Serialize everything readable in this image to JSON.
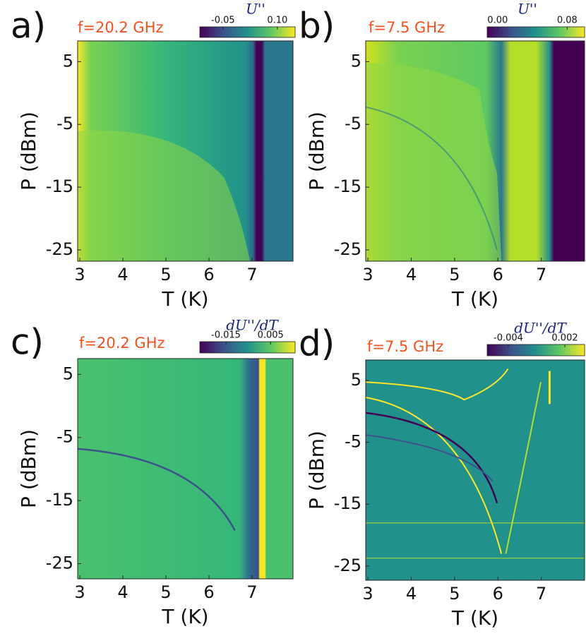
{
  "chart_data": [
    {
      "type": "heatmap",
      "panel_label": "a)",
      "annotation": "f=20.2 GHz",
      "xlabel": "T (K)",
      "ylabel": "P (dBm)",
      "xlim": [
        2.95,
        7.95
      ],
      "ylim": [
        -26.8,
        8.3
      ],
      "xticks": [
        3,
        4,
        5,
        6,
        7
      ],
      "yticks": [
        5,
        -5,
        -15,
        -25
      ],
      "colormap": "viridis",
      "colorbar": {
        "label": "U''",
        "lim": [
          -0.114,
          0.149
        ],
        "ticks": [
          -0.05,
          {
            "value": 0.1,
            "label": "0.10"
          }
        ]
      }
    },
    {
      "type": "heatmap",
      "panel_label": "b)",
      "annotation": "f=7.5 GHz",
      "xlabel": "T (K)",
      "ylabel": "P (dBm)",
      "xlim": [
        2.95,
        8.0
      ],
      "ylim": [
        -26.8,
        8.3
      ],
      "xticks": [
        3,
        4,
        5,
        6,
        7
      ],
      "yticks": [
        5,
        -5,
        -15,
        -25
      ],
      "colormap": "viridis",
      "colorbar": {
        "label": "U''",
        "lim": [
          -0.012,
          0.1
        ],
        "ticks": [
          {
            "value": 0,
            "label": "0.00"
          },
          0.08
        ]
      }
    },
    {
      "type": "heatmap",
      "panel_label": "c)",
      "annotation": "f=20.2 GHz",
      "xlabel": "T (K)",
      "ylabel": "P (dBm)",
      "xlim": [
        2.95,
        7.95
      ],
      "ylim": [
        -27.4,
        7.5
      ],
      "xticks": [
        3,
        4,
        5,
        6,
        7
      ],
      "yticks": [
        5,
        -5,
        -15,
        -25
      ],
      "colormap": "viridis",
      "colorbar": {
        "label": "dU''/dT",
        "lim": [
          -0.0267,
          0.016
        ],
        "ticks": [
          -0.015,
          0.005
        ]
      }
    },
    {
      "type": "heatmap",
      "panel_label": "d)",
      "annotation": "f=7.5 GHz",
      "xlabel": "T (K)",
      "ylabel": "P (dBm)",
      "xlim": [
        2.95,
        8.0
      ],
      "ylim": [
        -27.3,
        8.3
      ],
      "xticks": [
        3,
        4,
        5,
        6,
        7
      ],
      "yticks": [
        5,
        -5,
        -15,
        -25
      ],
      "colormap": "viridis",
      "colorbar": {
        "label": "dU''/dT",
        "lim": [
          -0.00625,
          0.0041
        ],
        "ticks": [
          -0.004,
          0.002
        ]
      }
    }
  ]
}
